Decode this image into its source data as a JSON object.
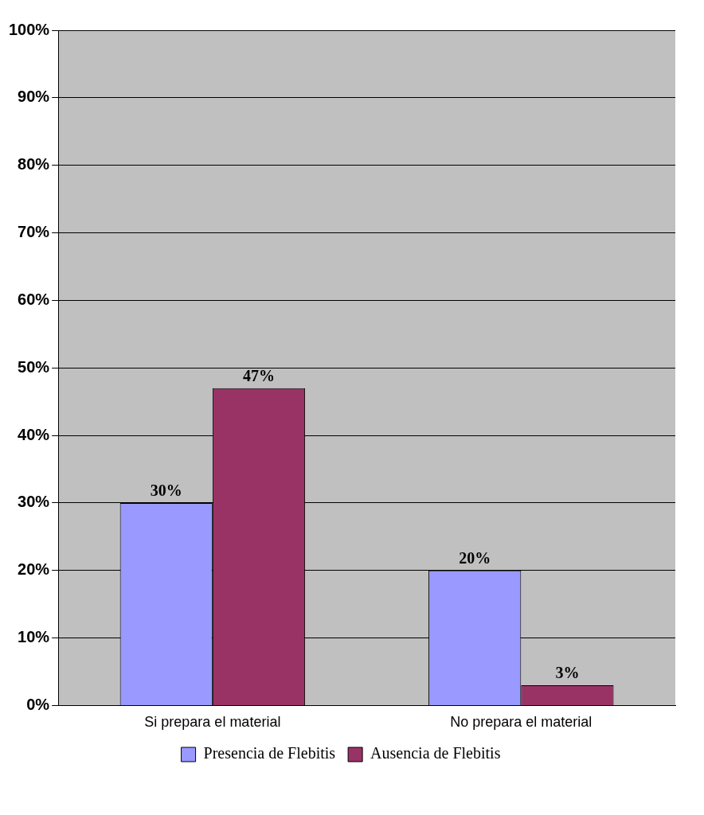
{
  "chart_data": {
    "type": "bar",
    "categories": [
      "Si prepara el material",
      "No prepara el material"
    ],
    "series": [
      {
        "name": "Presencia de Flebitis",
        "color": "#9999ff",
        "values": [
          30,
          20
        ],
        "value_labels": [
          "30%",
          "20%"
        ]
      },
      {
        "name": "Ausencia de Flebitis",
        "color": "#993366",
        "values": [
          47,
          3
        ],
        "value_labels": [
          "47%",
          "3%"
        ]
      }
    ],
    "ylim": [
      0,
      100
    ],
    "yticks": [
      {
        "value": 0,
        "label": "0%"
      },
      {
        "value": 10,
        "label": "10%"
      },
      {
        "value": 20,
        "label": "20%"
      },
      {
        "value": 30,
        "label": "30%"
      },
      {
        "value": 40,
        "label": "40%"
      },
      {
        "value": 50,
        "label": "50%"
      },
      {
        "value": 60,
        "label": "60%"
      },
      {
        "value": 70,
        "label": "70%"
      },
      {
        "value": 80,
        "label": "80%"
      },
      {
        "value": 90,
        "label": "90%"
      },
      {
        "value": 100,
        "label": "100%"
      }
    ],
    "grid": "y",
    "legend": "bottom"
  }
}
